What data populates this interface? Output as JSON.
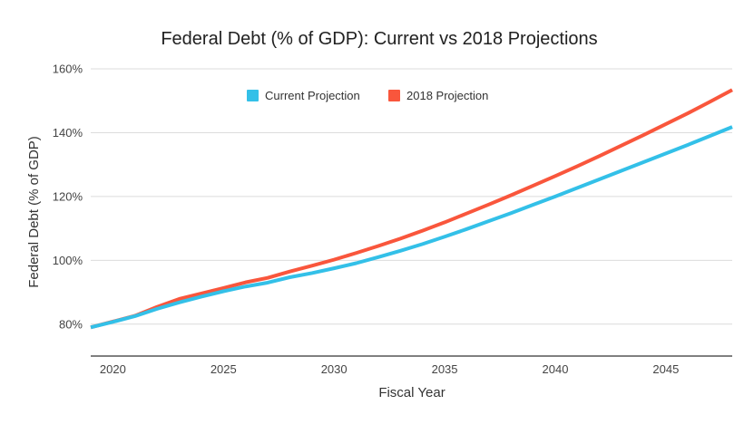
{
  "chart_data": {
    "type": "line",
    "title": "Federal Debt (% of GDP): Current vs 2018 Projections",
    "xlabel": "Fiscal Year",
    "ylabel": "Federal Debt (% of GDP)",
    "xlim": [
      2019,
      2048
    ],
    "ylim": [
      70,
      160
    ],
    "x_ticks": [
      2020,
      2025,
      2030,
      2035,
      2040,
      2045
    ],
    "y_ticks": [
      80,
      100,
      120,
      140,
      160
    ],
    "y_tick_labels": [
      "80%",
      "100%",
      "120%",
      "140%",
      "160%"
    ],
    "x_tick_labels": [
      "2020",
      "2025",
      "2030",
      "2035",
      "2040",
      "2045"
    ],
    "grid": true,
    "legend_position": "top-center",
    "x": [
      2019,
      2020,
      2021,
      2022,
      2023,
      2024,
      2025,
      2026,
      2027,
      2028,
      2029,
      2030,
      2031,
      2032,
      2033,
      2034,
      2035,
      2036,
      2037,
      2038,
      2039,
      2040,
      2041,
      2042,
      2043,
      2044,
      2045,
      2046,
      2047,
      2048
    ],
    "series": [
      {
        "name": "Current Projection",
        "color": "#33c0e8",
        "values": [
          79.0,
          80.7,
          82.5,
          84.8,
          86.8,
          88.6,
          90.3,
          91.8,
          93.0,
          94.7,
          96.0,
          97.5,
          99.1,
          101.0,
          103.0,
          105.1,
          107.4,
          109.8,
          112.3,
          114.8,
          117.4,
          120.0,
          122.7,
          125.4,
          128.1,
          130.8,
          133.5,
          136.2,
          139.0,
          141.8
        ]
      },
      {
        "name": "2018 Projection",
        "color": "#f9563c",
        "values": [
          79.0,
          80.8,
          82.6,
          85.4,
          87.9,
          89.6,
          91.3,
          93.1,
          94.5,
          96.5,
          98.3,
          100.2,
          102.3,
          104.5,
          106.8,
          109.3,
          111.9,
          114.7,
          117.5,
          120.4,
          123.4,
          126.4,
          129.5,
          132.7,
          136.0,
          139.3,
          142.7,
          146.1,
          149.7,
          153.4
        ]
      }
    ]
  }
}
